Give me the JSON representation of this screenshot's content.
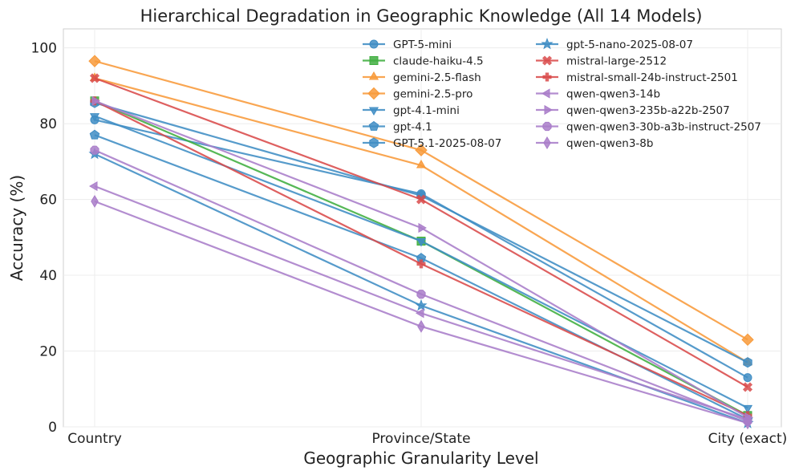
{
  "chart_data": {
    "type": "line",
    "title": "Hierarchical Degradation in Geographic Knowledge (All 14 Models)",
    "xlabel": "Geographic Granularity Level",
    "ylabel": "Accuracy (%)",
    "categories": [
      "Country",
      "Province/State",
      "City (exact)"
    ],
    "ylim": [
      0,
      105
    ],
    "yticks": [
      0,
      20,
      40,
      60,
      80,
      100
    ],
    "grid": true,
    "legend_placement": "top-right",
    "legend_columns": 2,
    "series": [
      {
        "name": "GPT-5-mini",
        "values": [
          81.0,
          61.5,
          13.0
        ],
        "color": "#3f8dc4",
        "marker": "circle"
      },
      {
        "name": "claude-haiku-4.5",
        "values": [
          86.0,
          49.0,
          3.0
        ],
        "color": "#3fae3f",
        "marker": "square"
      },
      {
        "name": "gemini-2.5-flash",
        "values": [
          92.0,
          69.0,
          17.0
        ],
        "color": "#f89a3a",
        "marker": "triangle-up"
      },
      {
        "name": "gemini-2.5-pro",
        "values": [
          96.5,
          73.0,
          23.0
        ],
        "color": "#f89a3a",
        "marker": "diamond"
      },
      {
        "name": "gpt-4.1-mini",
        "values": [
          82.0,
          49.0,
          5.0
        ],
        "color": "#3f8dc4",
        "marker": "triangle-down"
      },
      {
        "name": "gpt-4.1",
        "values": [
          77.0,
          44.5,
          2.0
        ],
        "color": "#3f8dc4",
        "marker": "pentagon"
      },
      {
        "name": "GPT-5.1-2025-08-07",
        "values": [
          85.5,
          61.0,
          17.0
        ],
        "color": "#3f8dc4",
        "marker": "hexagon"
      },
      {
        "name": "gpt-5-nano-2025-08-07",
        "values": [
          72.0,
          32.0,
          1.0
        ],
        "color": "#3f8dc4",
        "marker": "star"
      },
      {
        "name": "mistral-large-2512",
        "values": [
          92.0,
          60.0,
          10.5
        ],
        "color": "#d94a4a",
        "marker": "x-filled"
      },
      {
        "name": "mistral-small-24b-instruct-2501",
        "values": [
          86.0,
          43.0,
          3.0
        ],
        "color": "#d94a4a",
        "marker": "plus-filled"
      },
      {
        "name": "qwen-qwen3-14b",
        "values": [
          63.5,
          30.0,
          2.0
        ],
        "color": "#a97dc9",
        "marker": "triangle-left"
      },
      {
        "name": "qwen-qwen3-235b-a22b-2507",
        "values": [
          86.0,
          52.5,
          2.5
        ],
        "color": "#a97dc9",
        "marker": "triangle-right"
      },
      {
        "name": "qwen-qwen3-30b-a3b-instruct-2507",
        "values": [
          73.0,
          35.0,
          1.5
        ],
        "color": "#a97dc9",
        "marker": "octagon"
      },
      {
        "name": "qwen-qwen3-8b",
        "values": [
          59.5,
          26.5,
          1.0
        ],
        "color": "#a97dc9",
        "marker": "thin-diamond"
      }
    ]
  }
}
